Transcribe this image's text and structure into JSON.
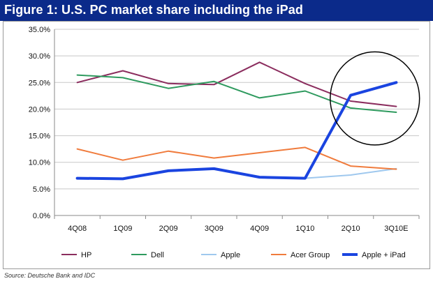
{
  "figure": {
    "title": "Figure 1: U.S. PC market share including the iPad",
    "source": "Source: Deutsche Bank and IDC",
    "title_bg": "#0b2a8a"
  },
  "chart_data": {
    "type": "line",
    "title": "Figure 1: U.S. PC market share including the iPad",
    "xlabel": "",
    "ylabel": "",
    "categories": [
      "4Q08",
      "1Q09",
      "2Q09",
      "3Q09",
      "4Q09",
      "1Q10",
      "2Q10",
      "3Q10E"
    ],
    "ylim": [
      0,
      35
    ],
    "yticks": [
      "0.0%",
      "5.0%",
      "10.0%",
      "15.0%",
      "20.0%",
      "25.0%",
      "30.0%",
      "35.0%"
    ],
    "ytick_values": [
      0,
      5,
      10,
      15,
      20,
      25,
      30,
      35
    ],
    "grid": true,
    "legend_position": "bottom",
    "series": [
      {
        "name": "HP",
        "color": "#8b2d5e",
        "width": 2,
        "values": [
          25.0,
          27.2,
          24.8,
          24.6,
          28.8,
          24.8,
          21.5,
          20.5
        ]
      },
      {
        "name": "Dell",
        "color": "#2e9a5e",
        "width": 2,
        "values": [
          26.4,
          25.9,
          23.9,
          25.2,
          22.1,
          23.4,
          20.2,
          19.4
        ]
      },
      {
        "name": "Apple",
        "color": "#9fc8ee",
        "width": 2,
        "values": [
          7.0,
          6.9,
          8.4,
          8.8,
          7.2,
          7.0,
          7.6,
          8.8
        ]
      },
      {
        "name": "Acer Group",
        "color": "#f07b3c",
        "width": 2,
        "values": [
          12.5,
          10.4,
          12.1,
          10.8,
          11.8,
          12.8,
          9.3,
          8.7
        ]
      },
      {
        "name": "Apple + iPad",
        "color": "#1a44e0",
        "width": 4,
        "values": [
          7.0,
          6.9,
          8.4,
          8.8,
          7.2,
          7.0,
          22.6,
          25.0
        ]
      }
    ],
    "annotations": [
      {
        "type": "ellipse",
        "around": [
          "2Q10",
          "3Q10E"
        ],
        "color": "#000000"
      }
    ]
  }
}
